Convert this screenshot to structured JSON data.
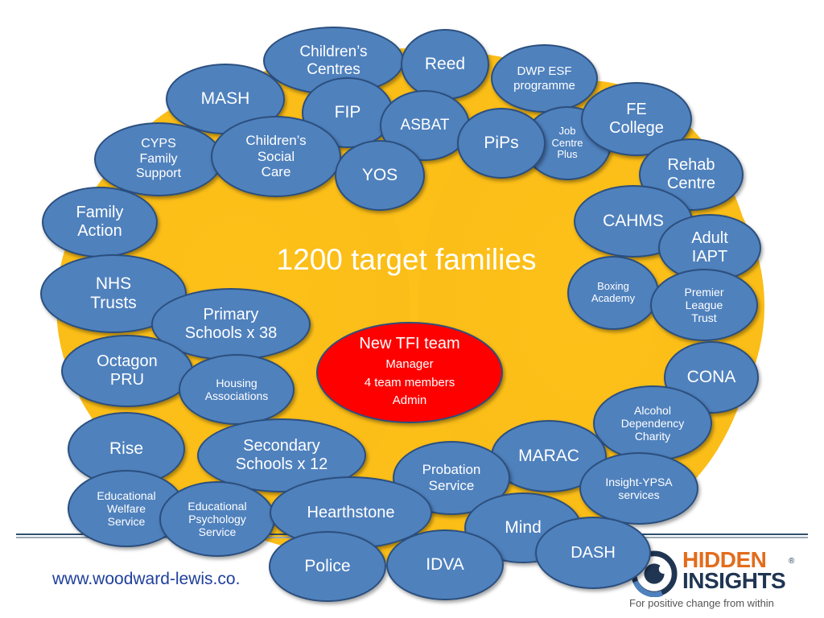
{
  "center_title": "1200 target families",
  "team": {
    "title": "New TFI team",
    "lines": [
      "Manager",
      "4 team members",
      "Admin"
    ]
  },
  "agencies": [
    "Children’s\nCentres",
    "Reed",
    "DWP ESF\nprogramme",
    "MASH",
    "FIP",
    "ASBAT",
    "Job\nCentre\nPlus",
    "FE\nCollege",
    "CYPS\nFamily\nSupport",
    "Children’s\nSocial\nCare",
    "YOS",
    "PiPs",
    "Rehab\nCentre",
    "Family\nAction",
    "CAHMS",
    "Adult\nIAPT",
    "NHS\nTrusts",
    "Boxing\nAcademy",
    "Primary\nSchools x 38",
    "Premier\nLeague\nTrust",
    "Octagon\nPRU",
    "Housing\nAssociations",
    "CONA",
    "Alcohol\nDependency\nCharity",
    "Rise",
    "Secondary\nSchools x 12",
    "MARAC",
    "Probation\nService",
    "Insight-YPSA\nservices",
    "Educational\nWelfare\nService",
    "Educational\nPsychology\nService",
    "Hearthstone",
    "Mind",
    "DASH",
    "Police",
    "IDVA"
  ],
  "footer": {
    "url": "www.woodward-lewis.co.",
    "logo_line1": "HIDDEN",
    "logo_line2": "INSIGHTS",
    "logo_registered": "®",
    "logo_tagline": "For positive change from within"
  },
  "colors": {
    "ellipse_fill": "#4f81bd",
    "ellipse_border": "#2b4f7e",
    "background_blob": "#fbbd17",
    "team_fill": "#ff0000",
    "logo_orange": "#e36c1c",
    "logo_navy": "#1f3552"
  }
}
